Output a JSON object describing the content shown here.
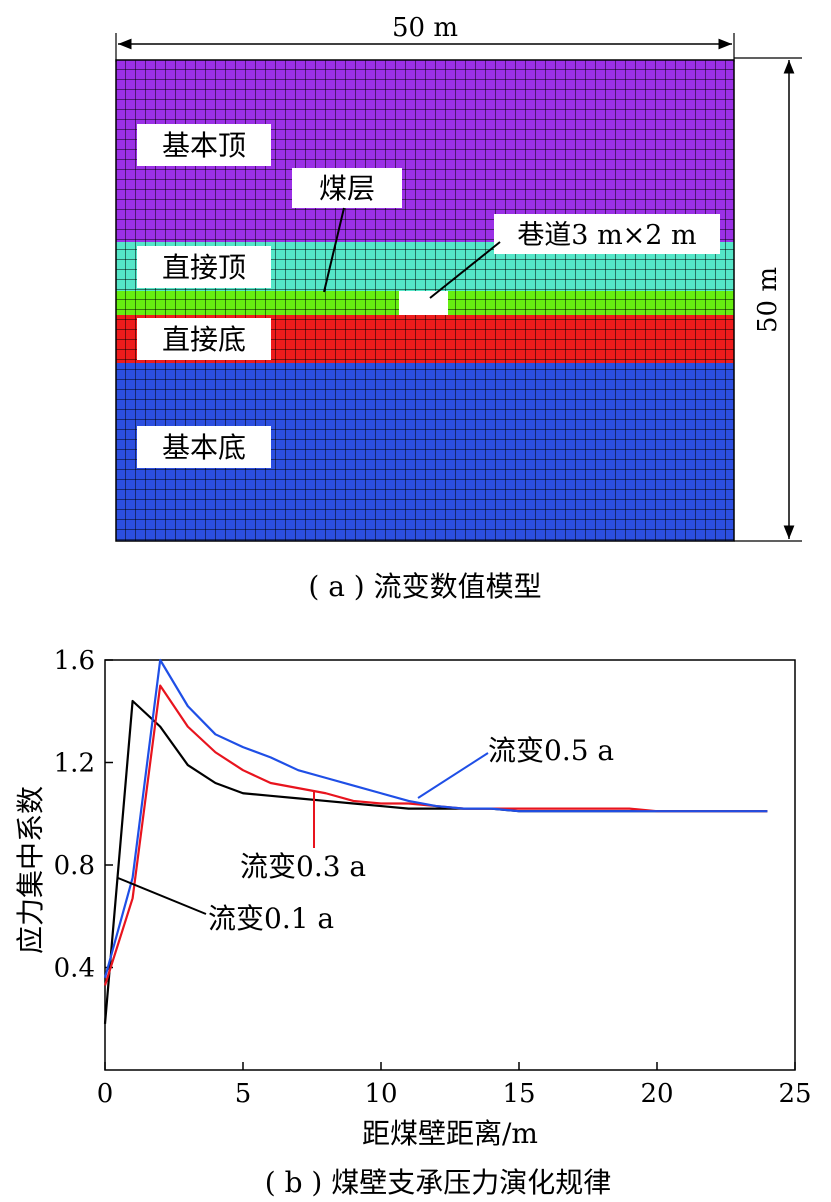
{
  "panel_a": {
    "width_label": "50 m",
    "height_label": "50 m",
    "layers": [
      {
        "name": "基本顶",
        "color": "#9b30e6"
      },
      {
        "name": "直接顶",
        "color": "#55e6c8"
      },
      {
        "name": "煤层",
        "color": "#66ee11"
      },
      {
        "name": "直接底",
        "color": "#ee1c1c"
      },
      {
        "name": "基本底",
        "color": "#2c4fe0"
      }
    ],
    "roadway_label": "巷道3 m×2 m",
    "caption": "( a ) 流变数值模型"
  },
  "panel_b": {
    "caption": "( b ) 煤壁支承压力演化规律"
  },
  "chart_data": {
    "type": "line",
    "xlabel": "距煤壁距离/m",
    "ylabel": "应力集中系数",
    "xlim": [
      0,
      25
    ],
    "ylim": [
      0,
      1.6
    ],
    "xticks": [
      0,
      5,
      10,
      15,
      20,
      25
    ],
    "yticks": [
      0.4,
      0.8,
      1.2,
      1.6
    ],
    "series": [
      {
        "name": "流变0.1 a",
        "color": "#000000",
        "x": [
          0,
          1,
          2,
          3,
          4,
          5,
          6,
          7,
          8,
          9,
          10,
          11,
          12,
          13,
          14,
          15,
          16,
          17,
          18,
          19,
          20,
          21,
          22,
          23,
          24
        ],
        "y": [
          0.18,
          1.44,
          1.34,
          1.19,
          1.12,
          1.08,
          1.07,
          1.06,
          1.05,
          1.04,
          1.03,
          1.02,
          1.02,
          1.02,
          1.02,
          1.01,
          1.01,
          1.01,
          1.01,
          1.01,
          1.01,
          1.01,
          1.01,
          1.01,
          1.01
        ]
      },
      {
        "name": "流变0.3 a",
        "color": "#e8141e",
        "x": [
          0,
          1,
          2,
          3,
          4,
          5,
          6,
          7,
          8,
          9,
          10,
          11,
          12,
          13,
          14,
          15,
          16,
          17,
          18,
          19,
          20,
          21,
          22,
          23,
          24
        ],
        "y": [
          0.33,
          0.67,
          1.5,
          1.34,
          1.24,
          1.17,
          1.12,
          1.1,
          1.08,
          1.05,
          1.04,
          1.04,
          1.03,
          1.02,
          1.02,
          1.02,
          1.02,
          1.02,
          1.02,
          1.02,
          1.01,
          1.01,
          1.01,
          1.01,
          1.01
        ]
      },
      {
        "name": "流变0.5 a",
        "color": "#1f4fe6",
        "x": [
          0,
          1,
          2,
          3,
          4,
          5,
          6,
          7,
          8,
          9,
          10,
          11,
          12,
          13,
          14,
          15,
          16,
          17,
          18,
          19,
          20,
          21,
          22,
          23,
          24
        ],
        "y": [
          0.36,
          0.75,
          1.6,
          1.42,
          1.31,
          1.26,
          1.22,
          1.17,
          1.14,
          1.11,
          1.08,
          1.05,
          1.03,
          1.02,
          1.02,
          1.01,
          1.01,
          1.01,
          1.01,
          1.01,
          1.01,
          1.01,
          1.01,
          1.01,
          1.01
        ]
      }
    ]
  }
}
